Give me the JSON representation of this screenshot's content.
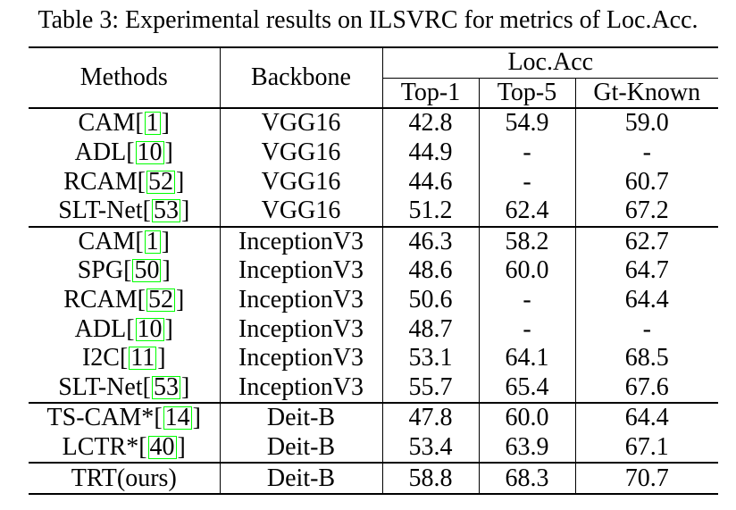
{
  "caption": "Table 3: Experimental results on ILSVRC for metrics of Loc.Acc.",
  "header": {
    "methods": "Methods",
    "backbone": "Backbone",
    "group": "Loc.Acc",
    "top1": "Top-1",
    "top5": "Top-5",
    "gt_known": "Gt-Known"
  },
  "colors": {
    "citation_box": "#00ff00",
    "rule": "#000000"
  },
  "rows": [
    {
      "method": "CAM",
      "cite": "1",
      "backbone": "VGG16",
      "top1": "42.8",
      "top5": "54.9",
      "gt": "59.0"
    },
    {
      "method": "ADL",
      "cite": "10",
      "backbone": "VGG16",
      "top1": "44.9",
      "top5": "-",
      "gt": "-"
    },
    {
      "method": "RCAM",
      "cite": "52",
      "backbone": "VGG16",
      "top1": "44.6",
      "top5": "-",
      "gt": "60.7"
    },
    {
      "method": "SLT-Net",
      "cite": "53",
      "backbone": "VGG16",
      "top1": "51.2",
      "top5": "62.4",
      "gt": "67.2"
    },
    {
      "method": "CAM",
      "cite": "1",
      "backbone": "InceptionV3",
      "top1": "46.3",
      "top5": "58.2",
      "gt": "62.7"
    },
    {
      "method": "SPG",
      "cite": "50",
      "backbone": "InceptionV3",
      "top1": "48.6",
      "top5": "60.0",
      "gt": "64.7"
    },
    {
      "method": "RCAM",
      "cite": "52",
      "backbone": "InceptionV3",
      "top1": "50.6",
      "top5": "-",
      "gt": "64.4"
    },
    {
      "method": "ADL",
      "cite": "10",
      "backbone": "InceptionV3",
      "top1": "48.7",
      "top5": "-",
      "gt": "-"
    },
    {
      "method": "I2C",
      "cite": "11",
      "backbone": "InceptionV3",
      "top1": "53.1",
      "top5": "64.1",
      "gt": "68.5"
    },
    {
      "method": "SLT-Net",
      "cite": "53",
      "backbone": "InceptionV3",
      "top1": "55.7",
      "top5": "65.4",
      "gt": "67.6"
    },
    {
      "method": "TS-CAM*",
      "cite": "14",
      "backbone": "Deit-B",
      "top1": "47.8",
      "top5": "60.0",
      "gt": "64.4"
    },
    {
      "method": "LCTR*",
      "cite": "40",
      "backbone": "Deit-B",
      "top1": "53.4",
      "top5": "63.9",
      "gt": "67.1"
    },
    {
      "method": "TRT(ours)",
      "cite": "",
      "backbone": "Deit-B",
      "top1": "58.8",
      "top5": "68.3",
      "gt": "70.7"
    }
  ]
}
